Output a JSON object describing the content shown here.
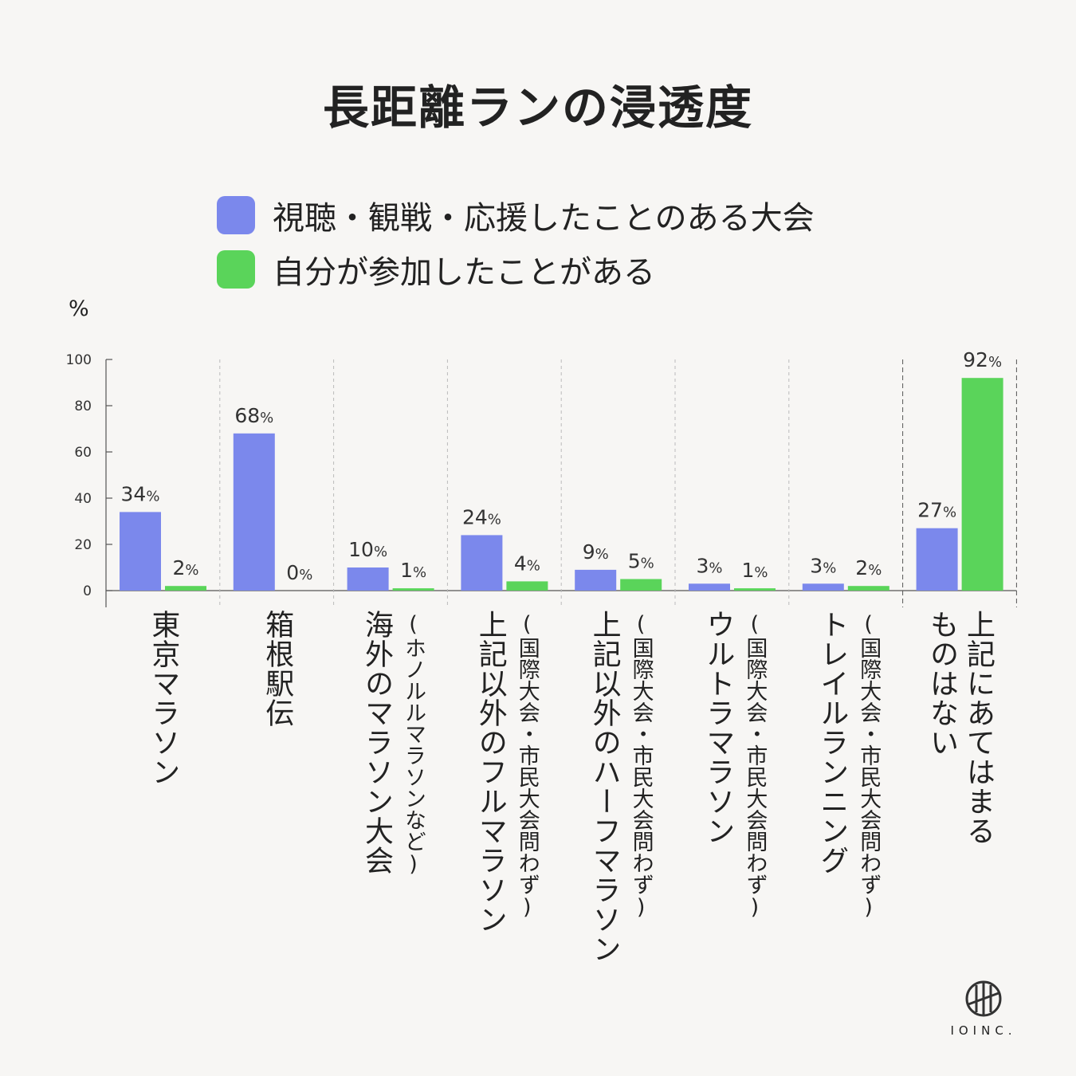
{
  "title": "長距離ランの浸透度",
  "legend": [
    {
      "label": "視聴・観戦・応援したことのある大会",
      "color": "#7b88ec"
    },
    {
      "label": "自分が参加したことがある",
      "color": "#5ad45a"
    }
  ],
  "unit_label": "%",
  "brand": {
    "name": "IOINC."
  },
  "chart_data": {
    "type": "bar",
    "title": "長距離ランの浸透度",
    "ylabel": "%",
    "ylim": [
      0,
      100
    ],
    "yticks": [
      0,
      20,
      40,
      60,
      80,
      100
    ],
    "grid": false,
    "legend_position": "top-left",
    "categories": [
      {
        "main": "東京マラソン",
        "sub": ""
      },
      {
        "main": "箱根駅伝",
        "sub": ""
      },
      {
        "main": "海外のマラソン大会",
        "sub": "(ホノルルマラソンなど)"
      },
      {
        "main": "上記以外のフルマラソン",
        "sub": "(国際大会・市民大会問わず)"
      },
      {
        "main": "上記以外のハーフマラソン",
        "sub": "(国際大会・市民大会問わず)"
      },
      {
        "main": "ウルトラマラソン",
        "sub": "(国際大会・市民大会問わず)"
      },
      {
        "main": "トレイルランニング",
        "sub": "(国際大会・市民大会問わず)"
      },
      {
        "main": "上記にあてはまる\nものはない",
        "sub": ""
      }
    ],
    "series": [
      {
        "name": "視聴・観戦・応援したことのある大会",
        "color": "#7b88ec",
        "values": [
          34,
          68,
          10,
          24,
          9,
          3,
          3,
          27
        ]
      },
      {
        "name": "自分が参加したことがある",
        "color": "#5ad45a",
        "values": [
          2,
          0,
          1,
          4,
          5,
          1,
          2,
          92
        ]
      }
    ],
    "value_suffix": "%"
  }
}
